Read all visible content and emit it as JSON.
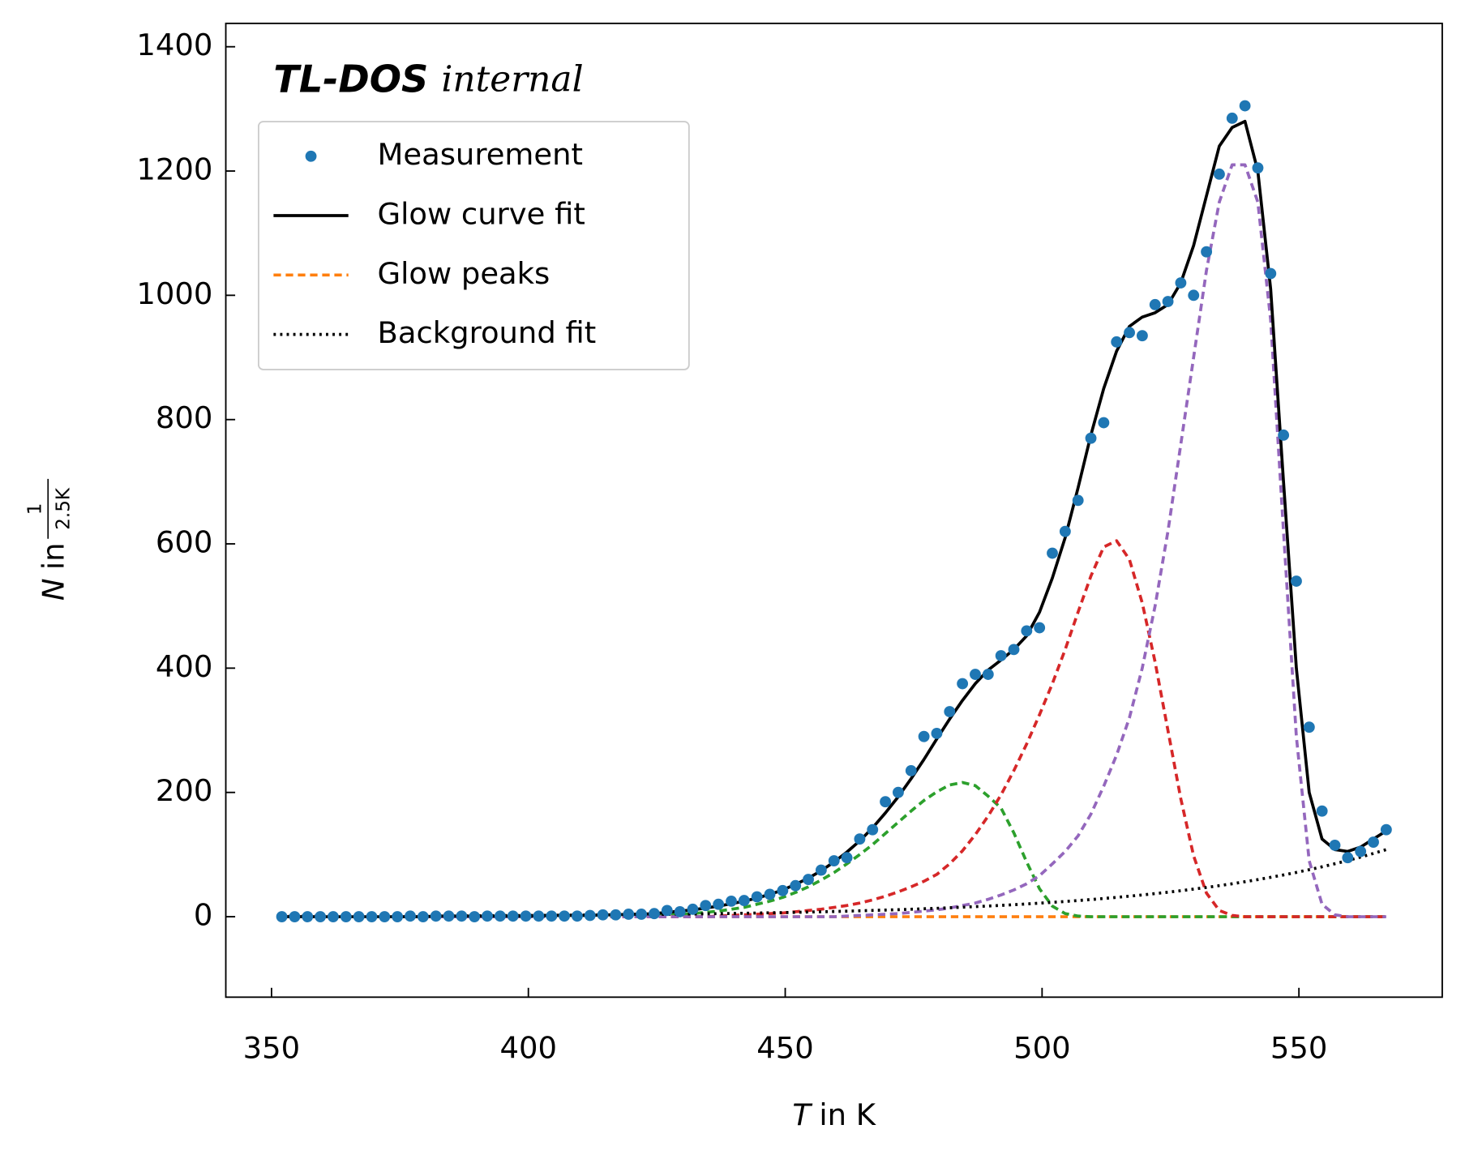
{
  "chart_data": {
    "type": "line",
    "annotations": [
      "TL-DOS",
      "internal"
    ],
    "xlabel": [
      "T",
      "in K"
    ],
    "ylabel": [
      "N",
      "in",
      "1",
      "2.5K"
    ],
    "xlim": [
      341.1,
      577.9
    ],
    "ylim": [
      -129.5,
      1437.6
    ],
    "xticks": [
      350,
      400,
      450,
      500,
      550
    ],
    "yticks": [
      0,
      200,
      400,
      600,
      800,
      1000,
      1200,
      1400
    ],
    "legend": "upper left",
    "x": [
      352,
      354.5,
      357,
      359.5,
      362,
      364.5,
      367,
      369.5,
      372,
      374.5,
      377,
      379.5,
      382,
      384.5,
      387,
      389.5,
      392,
      394.5,
      397,
      399.5,
      402,
      404.5,
      407,
      409.5,
      412,
      414.5,
      417,
      419.5,
      422,
      424.5,
      427,
      429.5,
      432,
      434.5,
      437,
      439.5,
      442,
      444.5,
      447,
      449.5,
      452,
      454.5,
      457,
      459.5,
      462,
      464.5,
      467,
      469.5,
      472,
      474.5,
      477,
      479.5,
      482,
      484.5,
      487,
      489.5,
      492,
      494.5,
      497,
      499.5,
      502,
      504.5,
      507,
      509.5,
      512,
      514.5,
      517,
      519.5,
      522,
      524.5,
      527,
      529.5,
      532,
      534.5,
      537,
      539.5,
      542,
      544.5,
      547,
      549.5,
      552,
      554.5,
      557,
      559.5,
      562,
      564.5,
      567
    ],
    "series": [
      {
        "name": "Glow peaks",
        "color": "#ff7f0e",
        "style": "dashed",
        "values": [
          0,
          0,
          0,
          0,
          0,
          0,
          0,
          0,
          0,
          0,
          0,
          0,
          0,
          0,
          0,
          0,
          0,
          0,
          0,
          0,
          0,
          0,
          0,
          0,
          0,
          0,
          0,
          0,
          0,
          0,
          0,
          0,
          0,
          0,
          0,
          0,
          0,
          0,
          0,
          0,
          0,
          0,
          0,
          0,
          0,
          0,
          0,
          0,
          0,
          0,
          0,
          0,
          0,
          0,
          0,
          0,
          0,
          0,
          0,
          0,
          0,
          0,
          0,
          0,
          0,
          0,
          0,
          0,
          0,
          0,
          0,
          0,
          0,
          0,
          0,
          0,
          0,
          0,
          0,
          0,
          0,
          0,
          0,
          0,
          0,
          0,
          0
        ]
      },
      {
        "color": "#2ca02c",
        "style": "dashed",
        "values": [
          0,
          0,
          0,
          0,
          0,
          0,
          0,
          0,
          0,
          0,
          0,
          0,
          0,
          0,
          0,
          0,
          0,
          0,
          0,
          0,
          0,
          0,
          0,
          0,
          0,
          0,
          1,
          1,
          2,
          2,
          3,
          4,
          5,
          7,
          9,
          12,
          15,
          20,
          25,
          31,
          39,
          48,
          59,
          71,
          85,
          100,
          116,
          134,
          152,
          170,
          187,
          201,
          212,
          216,
          211,
          194,
          175,
          135,
          88,
          45,
          17,
          5,
          1,
          0,
          0,
          0,
          0,
          0,
          0,
          0,
          0,
          0,
          0,
          0,
          0,
          0,
          0,
          0,
          0,
          0,
          0,
          0,
          0,
          0,
          0,
          0,
          0
        ]
      },
      {
        "color": "#d62728",
        "style": "dashed",
        "values": [
          0,
          0,
          0,
          0,
          0,
          0,
          0,
          0,
          0,
          0,
          0,
          0,
          0,
          0,
          0,
          0,
          0,
          0,
          0,
          0,
          0,
          0,
          0,
          0,
          0,
          0,
          0,
          0,
          0,
          0,
          0,
          0,
          0,
          0,
          1,
          2,
          3,
          4,
          5,
          6,
          8,
          10,
          12,
          15,
          18,
          22,
          27,
          33,
          40,
          48,
          57,
          68,
          85,
          106,
          132,
          162,
          196,
          235,
          278,
          325,
          375,
          430,
          490,
          548,
          595,
          605,
          575,
          505,
          410,
          300,
          190,
          98,
          38,
          10,
          2,
          0,
          0,
          0,
          0,
          0,
          0,
          0,
          0,
          0,
          0,
          0,
          0
        ]
      },
      {
        "color": "#9467bd",
        "style": "dashed",
        "values": [
          0,
          0,
          0,
          0,
          0,
          0,
          0,
          0,
          0,
          0,
          0,
          0,
          0,
          0,
          0,
          0,
          0,
          0,
          0,
          0,
          0,
          0,
          0,
          0,
          0,
          0,
          0,
          0,
          0,
          0,
          0,
          0,
          0,
          0,
          0,
          0,
          0,
          0,
          0,
          0,
          0,
          0,
          0,
          0,
          1,
          2,
          3,
          4,
          5,
          7,
          9,
          11,
          14,
          18,
          22,
          28,
          35,
          43,
          53,
          66,
          85,
          105,
          130,
          165,
          210,
          260,
          320,
          400,
          500,
          620,
          760,
          900,
          1040,
          1150,
          1210,
          1210,
          1150,
          960,
          620,
          290,
          90,
          20,
          3,
          0,
          0,
          0,
          0
        ]
      },
      {
        "name": "Background fit",
        "color": "#000000",
        "style": "dotted",
        "values": [
          0.6,
          0.7,
          0.7,
          0.8,
          0.8,
          0.9,
          0.9,
          1.0,
          1.0,
          1.1,
          1.2,
          1.3,
          1.3,
          1.4,
          1.5,
          1.6,
          1.7,
          1.8,
          1.9,
          2.0,
          2.2,
          2.3,
          2.4,
          2.6,
          2.7,
          2.9,
          3.1,
          3.3,
          3.5,
          3.7,
          3.9,
          4.1,
          4.4,
          4.7,
          4.9,
          5.2,
          5.6,
          5.9,
          6.3,
          6.6,
          7.0,
          7.5,
          7.9,
          8.4,
          8.9,
          9.5,
          10.1,
          10.7,
          11.3,
          12.0,
          12.8,
          13.5,
          14.4,
          15.3,
          16.2,
          17.2,
          18.2,
          19.3,
          20.5,
          21.8,
          23.1,
          24.5,
          26.0,
          27.6,
          29.3,
          31.1,
          33.0,
          35.0,
          37.2,
          39.4,
          41.8,
          44.4,
          47.1,
          50.0,
          53.0,
          56.3,
          59.7,
          63.4,
          67.2,
          71.3,
          75.7,
          80.3,
          85.2,
          90.4,
          95.9,
          101.8,
          108
        ]
      },
      {
        "name": "Glow curve fit",
        "color": "#000000",
        "style": "solid",
        "values": [
          0,
          0,
          0,
          0,
          0,
          0,
          0,
          0,
          0,
          0,
          0,
          0,
          1,
          1,
          1,
          1,
          1,
          1,
          1,
          1,
          1,
          2,
          2,
          2,
          2,
          3,
          3,
          4,
          4,
          5,
          7,
          9,
          11,
          14,
          17,
          21,
          25,
          30,
          36,
          43,
          52,
          62,
          74,
          88,
          104,
          122,
          143,
          167,
          193,
          222,
          253,
          286,
          318,
          348,
          375,
          397,
          413,
          430,
          452,
          490,
          545,
          610,
          690,
          775,
          850,
          910,
          950,
          965,
          972,
          985,
          1020,
          1080,
          1160,
          1240,
          1270,
          1280,
          1200,
          1010,
          700,
          400,
          200,
          125,
          108,
          105,
          112,
          125,
          138
        ]
      },
      {
        "name": "Measurement",
        "color": "#1f77b4",
        "style": "marker",
        "values": [
          0,
          0,
          0,
          0,
          0,
          0,
          0,
          0,
          0,
          0,
          1,
          0,
          1,
          1,
          1,
          0,
          1,
          1,
          1,
          1,
          1,
          1,
          1,
          1,
          2,
          3,
          3,
          4,
          4,
          5,
          10,
          8,
          12,
          18,
          20,
          25,
          26,
          32,
          36,
          42,
          50,
          60,
          75,
          90,
          95,
          125,
          140,
          185,
          200,
          235,
          290,
          295,
          330,
          375,
          390,
          390,
          420,
          430,
          460,
          465,
          585,
          620,
          670,
          770,
          795,
          925,
          940,
          935,
          985,
          990,
          1020,
          1000,
          1070,
          1195,
          1285,
          1305,
          1205,
          1035,
          775,
          540,
          305,
          170,
          115,
          95,
          105,
          120,
          140
        ]
      }
    ],
    "legend_order": [
      6,
      5,
      0,
      4
    ]
  }
}
